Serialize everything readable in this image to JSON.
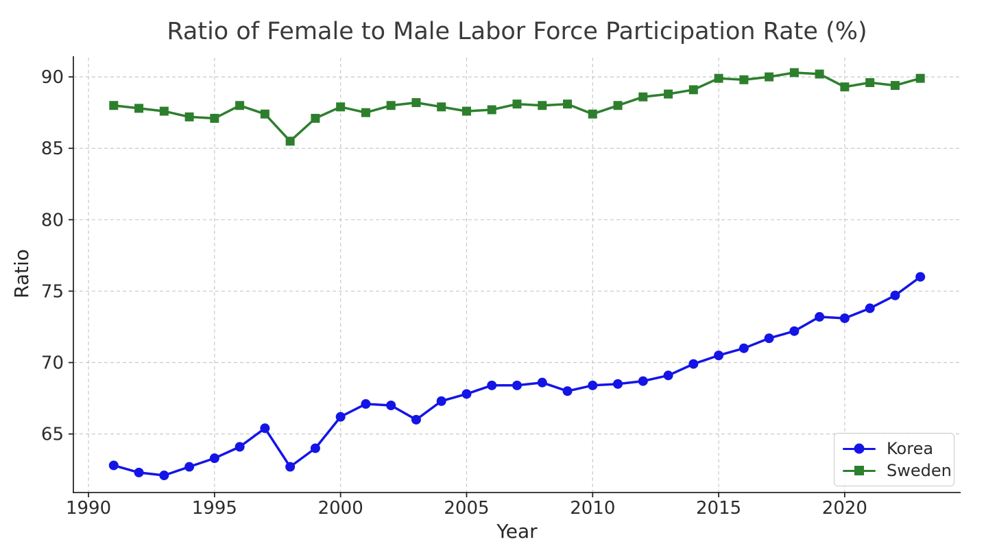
{
  "title": "Ratio of Female to Male Labor Force Participation Rate (%)",
  "colors": {
    "korea": "#1414e6",
    "sweden": "#2d7f2d",
    "grid": "#c9c9c9",
    "spine": "#262626",
    "title_text": "#3a3a3a",
    "tick_text": "#2b2b2b",
    "background": "#ffffff"
  },
  "chart_data": {
    "type": "line",
    "title": "Ratio of Female to Male Labor Force Participation Rate (%)",
    "xlabel": "Year",
    "ylabel": "Ratio",
    "xlim": [
      1989.4,
      2024.6
    ],
    "ylim": [
      60.9,
      91.35
    ],
    "xticks": [
      1990,
      1995,
      2000,
      2005,
      2010,
      2015,
      2020
    ],
    "yticks": [
      65,
      70,
      75,
      80,
      85,
      90
    ],
    "grid": true,
    "grid_style": "dashed",
    "legend_position": "lower-right",
    "x": [
      1991,
      1992,
      1993,
      1994,
      1995,
      1996,
      1997,
      1998,
      1999,
      2000,
      2001,
      2002,
      2003,
      2004,
      2005,
      2006,
      2007,
      2008,
      2009,
      2010,
      2011,
      2012,
      2013,
      2014,
      2015,
      2016,
      2017,
      2018,
      2019,
      2020,
      2021,
      2022,
      2023
    ],
    "series": [
      {
        "name": "Korea",
        "color": "#1414e6",
        "marker": "circle",
        "values": [
          62.8,
          62.3,
          62.1,
          62.7,
          63.3,
          64.1,
          65.4,
          62.7,
          64.0,
          66.2,
          67.1,
          67.0,
          66.0,
          67.3,
          67.8,
          68.4,
          68.4,
          68.6,
          68.0,
          68.4,
          68.5,
          68.7,
          69.1,
          69.9,
          70.5,
          71.0,
          71.7,
          72.2,
          73.2,
          73.1,
          73.8,
          74.7,
          76.0
        ]
      },
      {
        "name": "Sweden",
        "color": "#2d7f2d",
        "marker": "square",
        "values": [
          88.0,
          87.8,
          87.6,
          87.2,
          87.1,
          88.0,
          87.4,
          85.5,
          87.1,
          87.9,
          87.5,
          88.0,
          88.2,
          87.9,
          87.6,
          87.7,
          88.1,
          88.0,
          88.1,
          87.4,
          88.0,
          88.6,
          88.8,
          89.1,
          89.9,
          89.8,
          90.0,
          90.3,
          90.2,
          89.3,
          89.6,
          89.4,
          89.9
        ]
      }
    ]
  }
}
